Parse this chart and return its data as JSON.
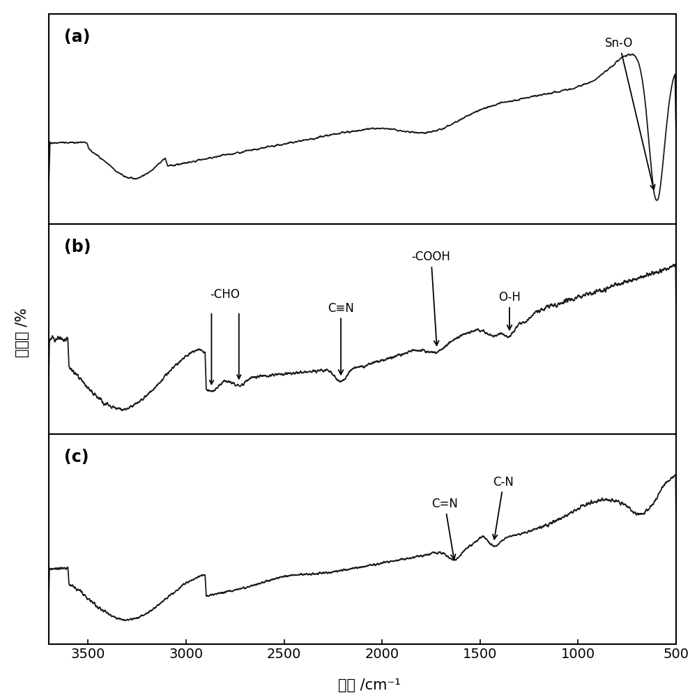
{
  "xlabel": "波数 /cm⁻¹",
  "ylabel": "透过率 /%",
  "background_color": "#ffffff",
  "line_color": "#1a1a1a",
  "panel_labels": [
    "(a)",
    "(b)",
    "(c)"
  ],
  "tick_positions": [
    3500,
    3000,
    2500,
    2000,
    1500,
    1000,
    500
  ],
  "x_min": 500,
  "x_max": 3700
}
